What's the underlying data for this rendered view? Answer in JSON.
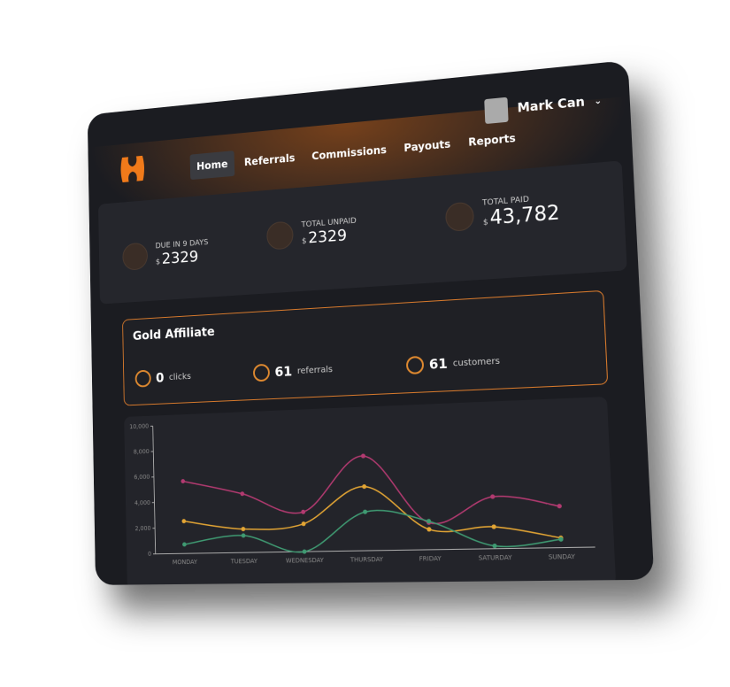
{
  "nav": {
    "items": [
      "Home",
      "Referrals",
      "Commissions",
      "Payouts",
      "Reports"
    ],
    "active": 0
  },
  "user": {
    "name": "Mark Can"
  },
  "stats": [
    {
      "label": "DUE IN 9 DAYS",
      "currency": "$",
      "amount": "2329"
    },
    {
      "label": "TOTAL UNPAID",
      "currency": "$",
      "amount": "2329"
    },
    {
      "label": "TOTAL PAID",
      "currency": "$",
      "amount": "43,782"
    }
  ],
  "affiliate": {
    "title": "Gold Affiliate",
    "metrics": [
      {
        "value": "0",
        "label": "clicks"
      },
      {
        "value": "61",
        "label": "referrals"
      },
      {
        "value": "61",
        "label": "customers"
      }
    ]
  },
  "chart_data": {
    "type": "line",
    "categories": [
      "MONDAY",
      "TUESDAY",
      "WEDNESDAY",
      "THURSDAY",
      "FRIDAY",
      "SATURDAY",
      "SUNDAY"
    ],
    "series": [
      {
        "color": "#b23a70",
        "values": [
          5600,
          4500,
          3000,
          7100,
          2000,
          3800,
          3000
        ]
      },
      {
        "color": "#e3a534",
        "values": [
          2500,
          1800,
          2100,
          4800,
          1500,
          1600,
          700
        ]
      },
      {
        "color": "#3f9a72",
        "values": [
          700,
          1300,
          0,
          2900,
          2100,
          200,
          600
        ]
      }
    ],
    "ylim": [
      0,
      10000
    ],
    "yticks": [
      0,
      {
        "value": 2000,
        "label": "2,000"
      },
      {
        "value": 4000,
        "label": "4,000"
      },
      {
        "value": 6000,
        "label": "6,000"
      },
      {
        "value": 8000,
        "label": "8,000"
      },
      {
        "value": 10000,
        "label": "10,000"
      }
    ]
  }
}
